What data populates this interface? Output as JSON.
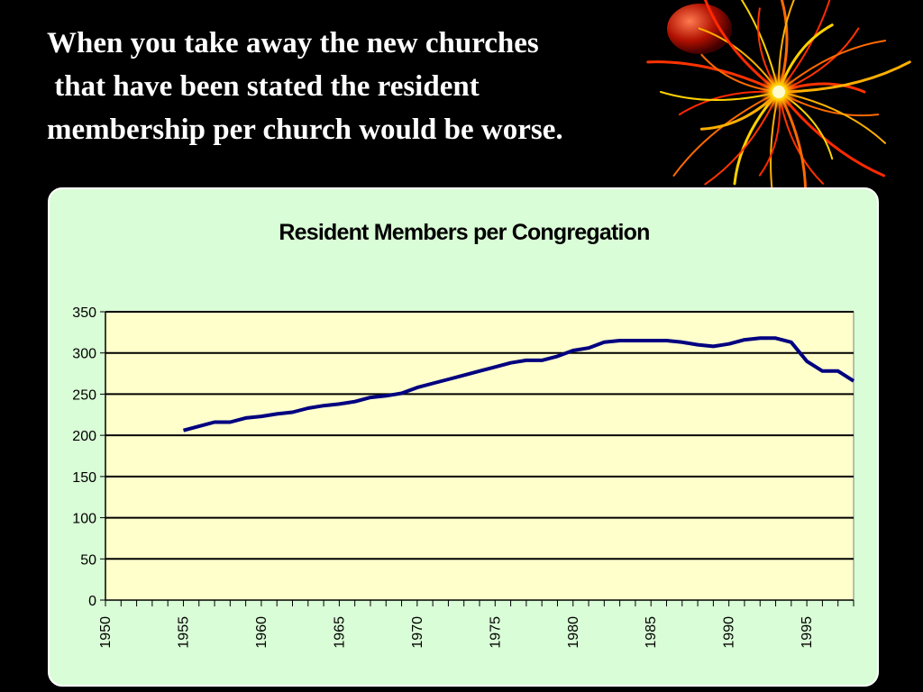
{
  "slide": {
    "title_lines": [
      "When you take away the new churches",
      " that have been stated the resident",
      "membership per church would be worse."
    ],
    "title_color": "#ffffff",
    "background_color": "#000000",
    "decoration_icon": "fireworks-ornament-icon"
  },
  "colors": {
    "panel_background": "#d9fdd6",
    "plot_background": "#ffffcc",
    "series_line": "#000080",
    "gridline": "#000000"
  },
  "chart_data": {
    "type": "line",
    "title": "Resident Members per Congregation",
    "xlabel": "",
    "ylabel": "",
    "xlim": [
      1950,
      1998
    ],
    "ylim": [
      0,
      350
    ],
    "y_ticks": [
      0,
      50,
      100,
      150,
      200,
      250,
      300,
      350
    ],
    "x_tick_labels": [
      "1950",
      "1955",
      "1960",
      "1965",
      "1970",
      "1975",
      "1980",
      "1985",
      "1990",
      "1995"
    ],
    "x_tick_values": [
      1950,
      1955,
      1960,
      1965,
      1970,
      1975,
      1980,
      1985,
      1990,
      1995
    ],
    "grid": "horizontal",
    "legend": "none",
    "series": [
      {
        "x": [
          1955,
          1956,
          1957,
          1958,
          1959,
          1960,
          1961,
          1962,
          1963,
          1964,
          1965,
          1966,
          1967,
          1968,
          1969,
          1970,
          1971,
          1972,
          1973,
          1974,
          1975,
          1976,
          1977,
          1978,
          1979,
          1980,
          1981,
          1982,
          1983,
          1984,
          1985,
          1986,
          1987,
          1988,
          1989,
          1990,
          1991,
          1992,
          1993,
          1994,
          1995,
          1996,
          1997,
          1998
        ],
        "y": [
          206,
          211,
          216,
          216,
          221,
          223,
          226,
          228,
          233,
          236,
          238,
          241,
          246,
          248,
          251,
          258,
          263,
          268,
          273,
          278,
          283,
          288,
          291,
          291,
          296,
          303,
          306,
          313,
          315,
          315,
          315,
          315,
          313,
          310,
          308,
          311,
          316,
          318,
          318,
          313,
          290,
          278,
          278,
          266
        ]
      }
    ]
  }
}
